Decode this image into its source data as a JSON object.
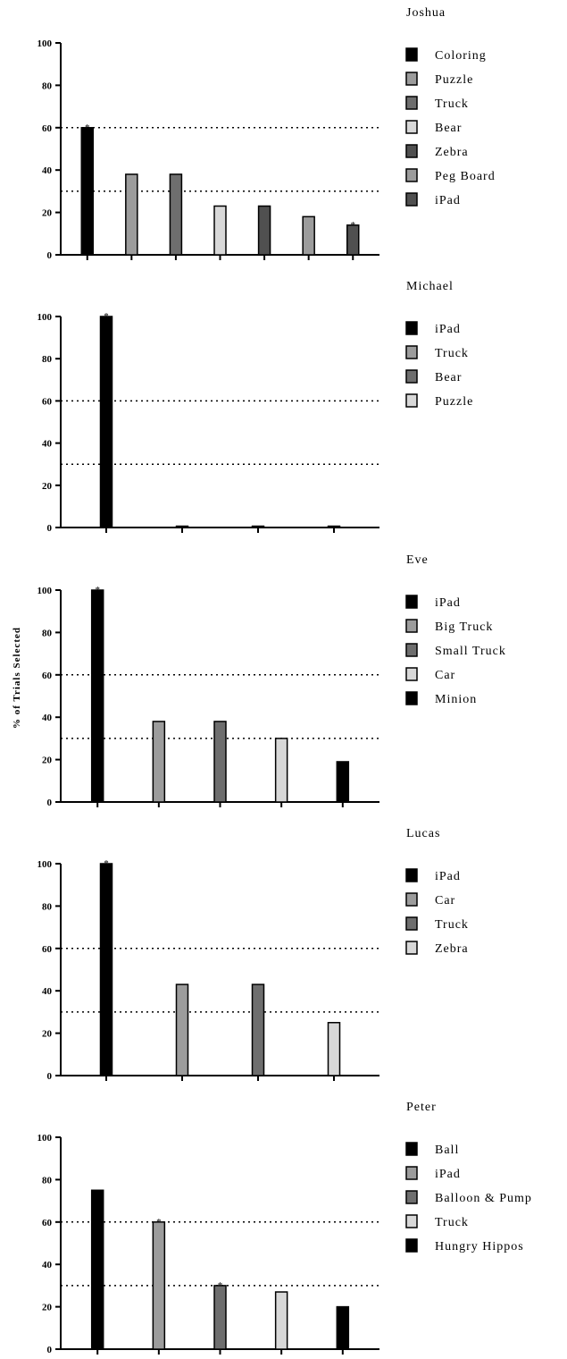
{
  "ylabel": "% of Trials Selected",
  "colors": {
    "shades": [
      "#000000",
      "#9c9c9c",
      "#6e6e6e",
      "#d8d8d8",
      "#505050"
    ],
    "axis": "#000000",
    "criterion_line": "#000000"
  },
  "chart_data": [
    {
      "type": "bar",
      "title": "Joshua",
      "ylim": [
        0,
        100
      ],
      "yticks": [
        0,
        20,
        40,
        60,
        80,
        100
      ],
      "reference_lines": [
        60,
        30
      ],
      "grid": false,
      "legend_position": "right",
      "series": [
        {
          "name": "Coloring",
          "value": 60,
          "color": "#000000",
          "starred": true
        },
        {
          "name": "Puzzle",
          "value": 38,
          "color": "#9c9c9c",
          "starred": false
        },
        {
          "name": "Truck",
          "value": 38,
          "color": "#6e6e6e",
          "starred": false
        },
        {
          "name": "Bear",
          "value": 23,
          "color": "#d8d8d8",
          "starred": false
        },
        {
          "name": "Zebra",
          "value": 23,
          "color": "#505050",
          "starred": false
        },
        {
          "name": "Peg Board",
          "value": 18,
          "color": "#9c9c9c",
          "starred": false
        },
        {
          "name": "iPad",
          "value": 14,
          "color": "#505050",
          "starred": true
        }
      ]
    },
    {
      "type": "bar",
      "title": "Michael",
      "ylim": [
        0,
        100
      ],
      "yticks": [
        0,
        20,
        40,
        60,
        80,
        100
      ],
      "reference_lines": [
        60,
        30
      ],
      "grid": false,
      "legend_position": "right",
      "series": [
        {
          "name": "iPad",
          "value": 100,
          "color": "#000000",
          "starred": true
        },
        {
          "name": "Truck",
          "value": 0,
          "color": "#9c9c9c",
          "starred": false
        },
        {
          "name": "Bear",
          "value": 0,
          "color": "#6e6e6e",
          "starred": false
        },
        {
          "name": "Puzzle",
          "value": 0,
          "color": "#d8d8d8",
          "starred": false
        }
      ]
    },
    {
      "type": "bar",
      "title": "Eve",
      "ylim": [
        0,
        100
      ],
      "yticks": [
        0,
        20,
        40,
        60,
        80,
        100
      ],
      "reference_lines": [
        60,
        30
      ],
      "grid": false,
      "legend_position": "right",
      "series": [
        {
          "name": "iPad",
          "value": 100,
          "color": "#000000",
          "starred": true
        },
        {
          "name": "Big Truck",
          "value": 38,
          "color": "#9c9c9c",
          "starred": false
        },
        {
          "name": "Small Truck",
          "value": 38,
          "color": "#6e6e6e",
          "starred": false
        },
        {
          "name": "Car",
          "value": 30,
          "color": "#d8d8d8",
          "starred": false
        },
        {
          "name": "Minion",
          "value": 19,
          "color": "#000000",
          "starred": false
        }
      ]
    },
    {
      "type": "bar",
      "title": "Lucas",
      "ylim": [
        0,
        100
      ],
      "yticks": [
        0,
        20,
        40,
        60,
        80,
        100
      ],
      "reference_lines": [
        60,
        30
      ],
      "grid": false,
      "legend_position": "right",
      "series": [
        {
          "name": "iPad",
          "value": 100,
          "color": "#000000",
          "starred": true
        },
        {
          "name": "Car",
          "value": 43,
          "color": "#9c9c9c",
          "starred": false
        },
        {
          "name": "Truck",
          "value": 43,
          "color": "#6e6e6e",
          "starred": false
        },
        {
          "name": "Zebra",
          "value": 25,
          "color": "#d8d8d8",
          "starred": false
        }
      ]
    },
    {
      "type": "bar",
      "title": "Peter",
      "ylim": [
        0,
        100
      ],
      "yticks": [
        0,
        20,
        40,
        60,
        80,
        100
      ],
      "reference_lines": [
        60,
        30
      ],
      "grid": false,
      "legend_position": "right",
      "series": [
        {
          "name": "Ball",
          "value": 75,
          "color": "#000000",
          "starred": false
        },
        {
          "name": "iPad",
          "value": 60,
          "color": "#9c9c9c",
          "starred": true
        },
        {
          "name": "Balloon & Pump",
          "value": 30,
          "color": "#6e6e6e",
          "starred": true
        },
        {
          "name": "Truck",
          "value": 27,
          "color": "#d8d8d8",
          "starred": false
        },
        {
          "name": "Hungry Hippos",
          "value": 20,
          "color": "#000000",
          "starred": false
        }
      ]
    }
  ]
}
